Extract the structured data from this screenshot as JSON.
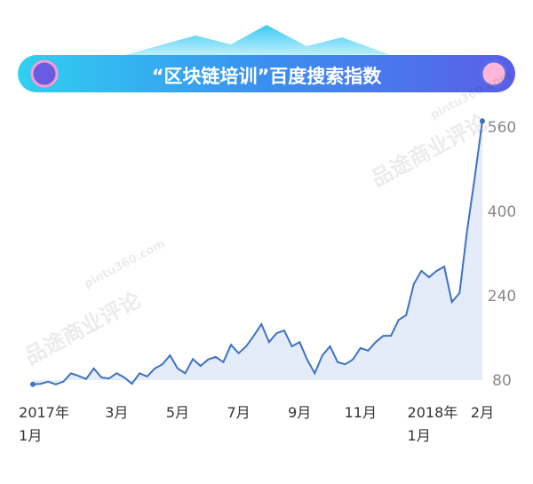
{
  "chart_data": {
    "type": "area",
    "title": "“区块链培训”百度搜索指数",
    "watermarks": [
      "品途商业评论",
      "pintu360.com"
    ],
    "categories": [
      null,
      null,
      "2017年\n1月",
      null,
      null,
      null,
      null,
      null,
      null,
      null,
      null,
      "3月",
      null,
      null,
      null,
      null,
      null,
      null,
      null,
      "5月",
      null,
      null,
      null,
      null,
      null,
      null,
      null,
      "7月",
      null,
      null,
      null,
      null,
      null,
      null,
      null,
      "9月",
      null,
      null,
      null,
      null,
      null,
      null,
      null,
      "11月",
      null,
      null,
      null,
      null,
      null,
      null,
      null,
      null,
      null,
      "2018年\n1月",
      null,
      null,
      null,
      null,
      null,
      "2月"
    ],
    "values": [
      72,
      73,
      77,
      72,
      77,
      93,
      88,
      82,
      102,
      85,
      83,
      93,
      85,
      73,
      93,
      87,
      102,
      110,
      127,
      102,
      93,
      120,
      107,
      119,
      124,
      114,
      147,
      131,
      144,
      164,
      186,
      152,
      169,
      174,
      144,
      152,
      119,
      93,
      127,
      144,
      114,
      110,
      119,
      141,
      136,
      152,
      164,
      164,
      194,
      203,
      262,
      287,
      275,
      287,
      295,
      228,
      245,
      363,
      464,
      571
    ],
    "color": "#3d72c4",
    "ylim": [
      60,
      600
    ],
    "yticks": [
      80,
      240,
      400,
      560
    ]
  }
}
